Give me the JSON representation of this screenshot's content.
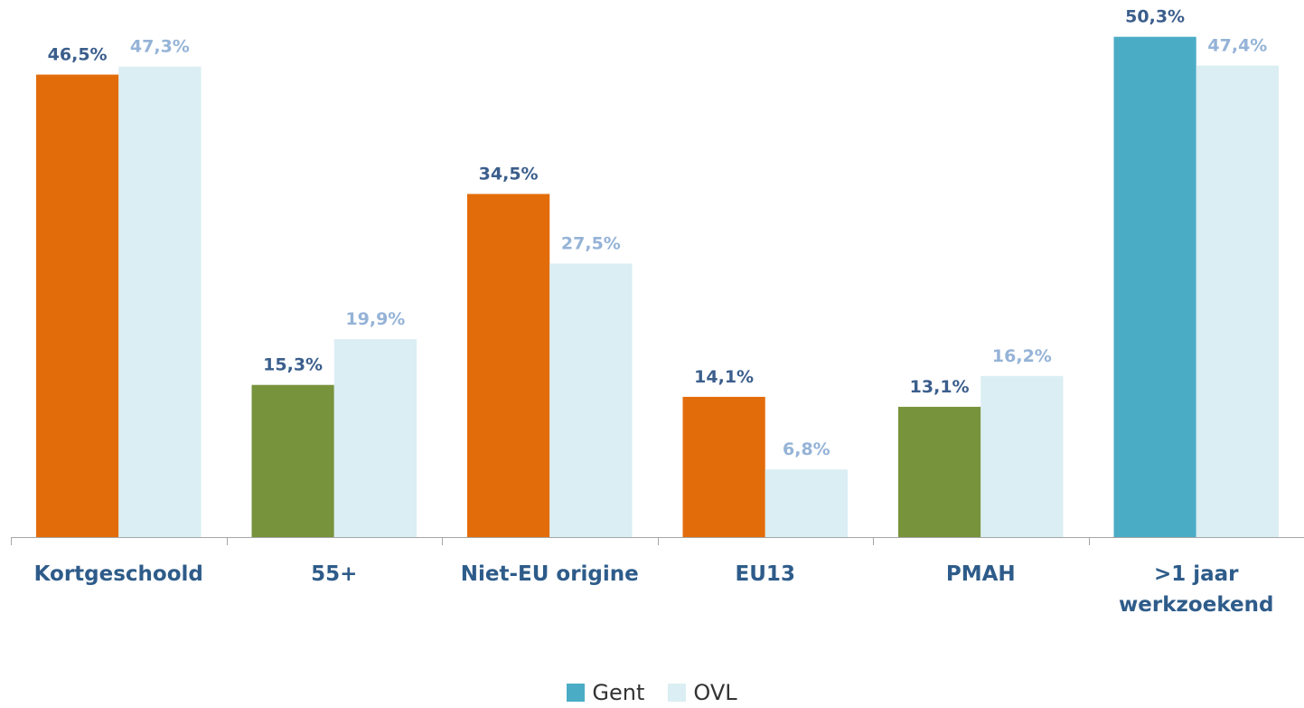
{
  "chart_data": {
    "type": "bar",
    "categories": [
      "Kortgeschoold",
      "55+",
      "Niet-EU origine",
      "EU13",
      "PMAH",
      ">1 jaar werkzoekend"
    ],
    "series": [
      {
        "name": "Gent",
        "color": "#4bacc6",
        "colors": [
          "#e36c0a",
          "#77933c",
          "#e36c0a",
          "#e36c0a",
          "#77933c",
          "#4bacc6"
        ],
        "values": [
          46.5,
          15.3,
          34.5,
          14.1,
          13.1,
          50.3
        ],
        "value_labels": [
          "46,5%",
          "15,3%",
          "34,5%",
          "14,1%",
          "13,1%",
          "50,3%"
        ],
        "label_color": "#3b5e8c"
      },
      {
        "name": "OVL",
        "color": "#daeef3",
        "values": [
          47.3,
          19.9,
          27.5,
          6.8,
          16.2,
          47.4
        ],
        "value_labels": [
          "47,3%",
          "19,9%",
          "27,5%",
          "6,8%",
          "16,2%",
          "47,4%"
        ],
        "label_color": "#95b3d7"
      }
    ],
    "ylim": [
      0,
      54
    ],
    "legend": "bottom"
  }
}
